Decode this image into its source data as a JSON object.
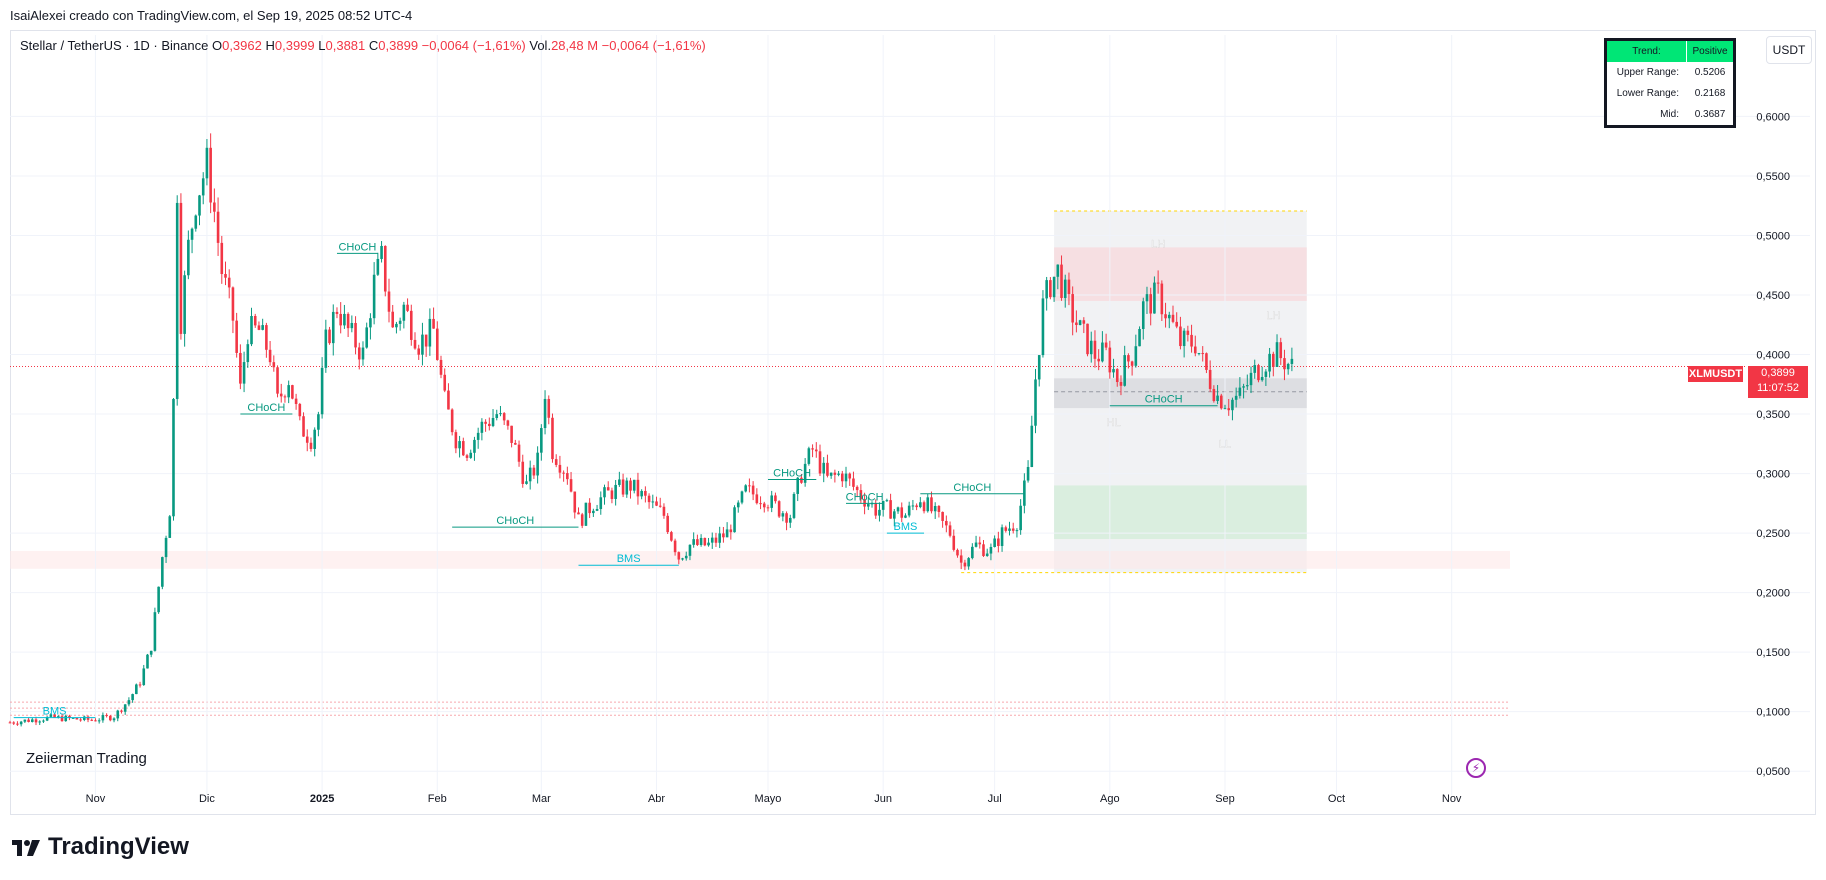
{
  "header": {
    "caption": "IsaiAlexei creado con TradingView.com, el Sep 19, 2025 08:52 UTC-4",
    "symbol": "Stellar / TetherUS · 1D · Binance",
    "open_label": "O",
    "open": "0,3962",
    "high_label": "H",
    "high": "0,3999",
    "low_label": "L",
    "low": "0,3881",
    "close_label": "C",
    "close": "0,3899",
    "change": "−0,0064 (−1,61%)",
    "vol_label": "Vol.",
    "vol": "28,48 M",
    "vol_change": "−0,0064 (−1,61%)"
  },
  "currency_button": "USDT",
  "info_table": {
    "trend_label": "Trend:",
    "trend_value": "Positive",
    "upper_label": "Upper Range:",
    "upper_value": "0.5206",
    "lower_label": "Lower Range:",
    "lower_value": "0.2168",
    "mid_label": "Mid:",
    "mid_value": "0.3687"
  },
  "price_tag": {
    "symbol": "XLMUSDT",
    "price": "0,3899",
    "countdown": "11:07:52"
  },
  "watermark": "Zeiierman Trading",
  "brand": "TradingView",
  "colors": {
    "up": "#089981",
    "down": "#f23645",
    "structure": "#089981",
    "bms": "#00bcd4",
    "highlight": "#00e676"
  },
  "chart_data": {
    "type": "candlestick",
    "y_axis_ticks": [
      "0,6000",
      "0,5500",
      "0,5000",
      "0,4500",
      "0,4000",
      "0,3500",
      "0,3000",
      "0,2500",
      "0,2000",
      "0,1500",
      "0,1000",
      "0,0500"
    ],
    "y_tick_values": [
      0.6,
      0.55,
      0.5,
      0.45,
      0.4,
      0.35,
      0.3,
      0.25,
      0.2,
      0.15,
      0.1,
      0.05
    ],
    "ylim": [
      0.03,
      0.66
    ],
    "x_axis_ticks": [
      "Nov",
      "Dic",
      "2025",
      "Feb",
      "Mar",
      "Abr",
      "Mayo",
      "Jun",
      "Jul",
      "Ago",
      "Sep",
      "Oct",
      "Nov"
    ],
    "x_tick_dates": [
      "2024-11-01",
      "2024-12-01",
      "2025-01-01",
      "2025-02-01",
      "2025-03-01",
      "2025-04-01",
      "2025-05-01",
      "2025-06-01",
      "2025-07-01",
      "2025-08-01",
      "2025-09-01",
      "2025-10-01",
      "2025-11-01"
    ],
    "last_price": 0.3899,
    "close_series": {
      "start_date": "2024-10-09",
      "points": [
        [
          "2024-10-09",
          0.091
        ],
        [
          "2024-10-20",
          0.095
        ],
        [
          "2024-10-31",
          0.093
        ],
        [
          "2024-11-06",
          0.096
        ],
        [
          "2024-11-10",
          0.11
        ],
        [
          "2024-11-13",
          0.125
        ],
        [
          "2024-11-16",
          0.155
        ],
        [
          "2024-11-19",
          0.23
        ],
        [
          "2024-11-21",
          0.27
        ],
        [
          "2024-11-22",
          0.36
        ],
        [
          "2024-11-23",
          0.54
        ],
        [
          "2024-11-24",
          0.43
        ],
        [
          "2024-11-26",
          0.49
        ],
        [
          "2024-11-28",
          0.53
        ],
        [
          "2024-12-01",
          0.56
        ],
        [
          "2024-12-03",
          0.52
        ],
        [
          "2024-12-05",
          0.47
        ],
        [
          "2024-12-08",
          0.43
        ],
        [
          "2024-12-10",
          0.37
        ],
        [
          "2024-12-12",
          0.42
        ],
        [
          "2024-12-15",
          0.42
        ],
        [
          "2024-12-18",
          0.4
        ],
        [
          "2024-12-20",
          0.36
        ],
        [
          "2024-12-23",
          0.38
        ],
        [
          "2024-12-26",
          0.34
        ],
        [
          "2024-12-29",
          0.33
        ],
        [
          "2024-12-31",
          0.35
        ],
        [
          "2025-01-02",
          0.41
        ],
        [
          "2025-01-05",
          0.44
        ],
        [
          "2025-01-08",
          0.42
        ],
        [
          "2025-01-12",
          0.4
        ],
        [
          "2025-01-15",
          0.46
        ],
        [
          "2025-01-17",
          0.48
        ],
        [
          "2025-01-20",
          0.42
        ],
        [
          "2025-01-23",
          0.44
        ],
        [
          "2025-01-27",
          0.41
        ],
        [
          "2025-01-31",
          0.42
        ],
        [
          "2025-02-03",
          0.36
        ],
        [
          "2025-02-06",
          0.33
        ],
        [
          "2025-02-09",
          0.32
        ],
        [
          "2025-02-13",
          0.34
        ],
        [
          "2025-02-17",
          0.35
        ],
        [
          "2025-02-21",
          0.33
        ],
        [
          "2025-02-25",
          0.29
        ],
        [
          "2025-02-28",
          0.31
        ],
        [
          "2025-03-02",
          0.37
        ],
        [
          "2025-03-04",
          0.32
        ],
        [
          "2025-03-08",
          0.3
        ],
        [
          "2025-03-11",
          0.26
        ],
        [
          "2025-03-15",
          0.275
        ],
        [
          "2025-03-20",
          0.285
        ],
        [
          "2025-03-25",
          0.29
        ],
        [
          "2025-03-30",
          0.275
        ],
        [
          "2025-04-03",
          0.265
        ],
        [
          "2025-04-07",
          0.23
        ],
        [
          "2025-04-10",
          0.24
        ],
        [
          "2025-04-15",
          0.24
        ],
        [
          "2025-04-20",
          0.25
        ],
        [
          "2025-04-25",
          0.285
        ],
        [
          "2025-04-30",
          0.28
        ],
        [
          "2025-05-04",
          0.27
        ],
        [
          "2025-05-07",
          0.265
        ],
        [
          "2025-05-10",
          0.3
        ],
        [
          "2025-05-13",
          0.32
        ],
        [
          "2025-05-17",
          0.295
        ],
        [
          "2025-05-21",
          0.3
        ],
        [
          "2025-05-25",
          0.285
        ],
        [
          "2025-05-30",
          0.27
        ],
        [
          "2025-06-03",
          0.27
        ],
        [
          "2025-06-07",
          0.265
        ],
        [
          "2025-06-11",
          0.28
        ],
        [
          "2025-06-15",
          0.265
        ],
        [
          "2025-06-19",
          0.25
        ],
        [
          "2025-06-22",
          0.225
        ],
        [
          "2025-06-26",
          0.24
        ],
        [
          "2025-06-30",
          0.235
        ],
        [
          "2025-07-03",
          0.25
        ],
        [
          "2025-07-07",
          0.26
        ],
        [
          "2025-07-10",
          0.3
        ],
        [
          "2025-07-12",
          0.38
        ],
        [
          "2025-07-14",
          0.44
        ],
        [
          "2025-07-16",
          0.46
        ],
        [
          "2025-07-18",
          0.47
        ],
        [
          "2025-07-21",
          0.44
        ],
        [
          "2025-07-24",
          0.42
        ],
        [
          "2025-07-28",
          0.4
        ],
        [
          "2025-07-31",
          0.4
        ],
        [
          "2025-08-03",
          0.38
        ],
        [
          "2025-08-07",
          0.4
        ],
        [
          "2025-08-10",
          0.44
        ],
        [
          "2025-08-14",
          0.45
        ],
        [
          "2025-08-17",
          0.43
        ],
        [
          "2025-08-20",
          0.41
        ],
        [
          "2025-08-24",
          0.41
        ],
        [
          "2025-08-27",
          0.385
        ],
        [
          "2025-08-30",
          0.365
        ],
        [
          "2025-09-02",
          0.36
        ],
        [
          "2025-09-05",
          0.365
        ],
        [
          "2025-09-09",
          0.385
        ],
        [
          "2025-09-12",
          0.395
        ],
        [
          "2025-09-15",
          0.4
        ],
        [
          "2025-09-19",
          0.3899
        ]
      ]
    },
    "annotations": [
      {
        "text": "CHoCH",
        "date_start": "2024-12-10",
        "date_end": "2024-12-24",
        "price": 0.35
      },
      {
        "text": "CHoCH",
        "date_start": "2025-01-05",
        "date_end": "2025-01-16",
        "price": 0.485
      },
      {
        "text": "CHoCH",
        "date_start": "2025-02-05",
        "date_end": "2025-03-11",
        "price": 0.255
      },
      {
        "text": "BMS",
        "date_start": "2025-03-11",
        "date_end": "2025-04-07",
        "price": 0.223
      },
      {
        "text": "CHoCH",
        "date_start": "2025-05-01",
        "date_end": "2025-05-14",
        "price": 0.295
      },
      {
        "text": "CHoCH",
        "date_start": "2025-05-22",
        "date_end": "2025-06-01",
        "price": 0.275
      },
      {
        "text": "BMS",
        "date_start": "2025-06-02",
        "date_end": "2025-06-12",
        "price": 0.25
      },
      {
        "text": "CHoCH",
        "date_start": "2025-06-11",
        "date_end": "2025-07-09",
        "price": 0.283
      },
      {
        "text": "CHoCH",
        "date_start": "2025-08-01",
        "date_end": "2025-08-30",
        "price": 0.357
      },
      {
        "text": "BMS",
        "date_start": "2024-10-10",
        "date_end": "2024-11-01",
        "price": 0.095
      }
    ],
    "swing_labels": [
      {
        "text": "LH",
        "date": "2025-08-14",
        "price": 0.49
      },
      {
        "text": "LH",
        "date": "2025-09-14",
        "price": 0.43
      },
      {
        "text": "HL",
        "date": "2025-08-02",
        "price": 0.34
      },
      {
        "text": "LL",
        "date": "2025-09-01",
        "price": 0.322
      }
    ],
    "range_box": {
      "upper": 0.5206,
      "lower": 0.2168,
      "mid": 0.3687,
      "date_start": "2025-07-17",
      "date_end": "2025-09-23"
    }
  }
}
